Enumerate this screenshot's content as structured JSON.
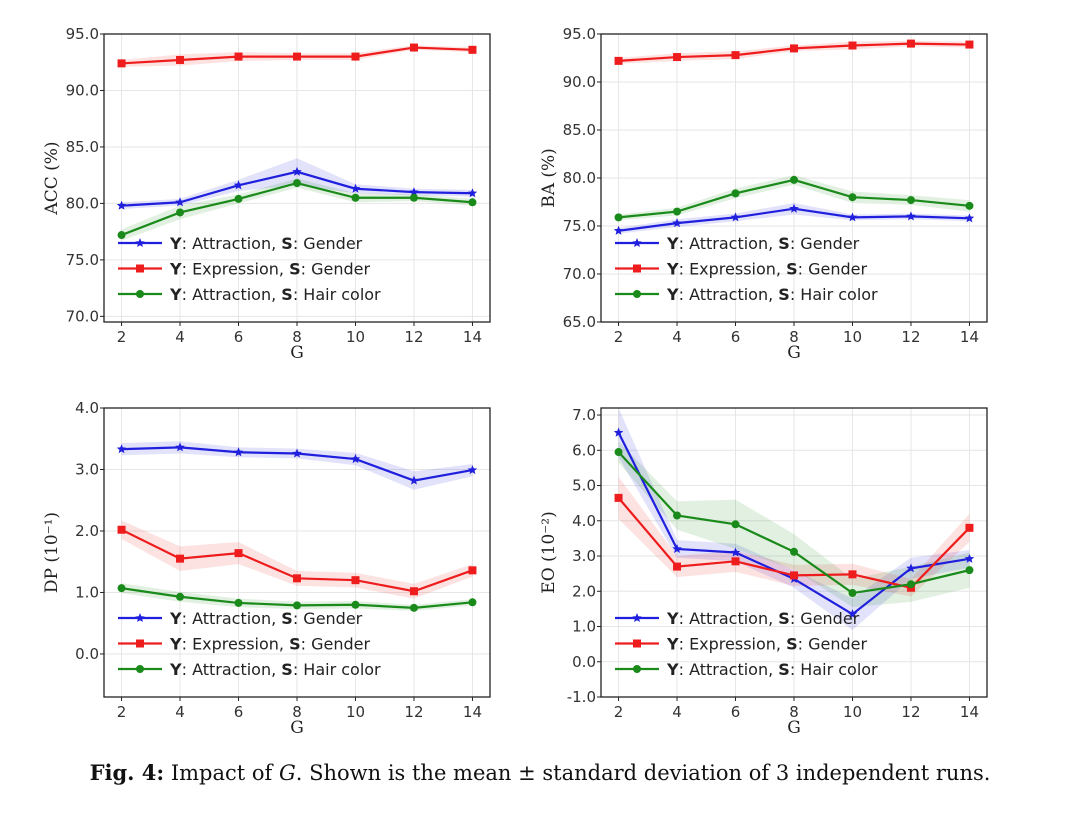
{
  "chart_data": [
    {
      "type": "line",
      "name": "acc",
      "ylabel": "ACC (%)",
      "xlabel": "G",
      "ylim": [
        69.5,
        95.0
      ],
      "yticks": [
        70.0,
        75.0,
        80.0,
        85.0,
        90.0,
        95.0
      ],
      "yticklabels": [
        "70.0",
        "75.0",
        "80.0",
        "85.0",
        "90.0",
        "95.0"
      ],
      "x": [
        2,
        4,
        6,
        8,
        10,
        12,
        14
      ],
      "xlim": [
        1.4,
        14.6
      ],
      "legend_position": "lower-left",
      "series": [
        {
          "name": "Attraction, Gender",
          "y_label": "Attraction",
          "s_label": "Gender",
          "color": "#1f1fdd",
          "marker": "star",
          "values": [
            79.8,
            80.1,
            81.6,
            82.8,
            81.3,
            81.0,
            80.9
          ],
          "std": [
            0.3,
            0.3,
            0.5,
            1.2,
            0.4,
            0.3,
            0.3
          ]
        },
        {
          "name": "Expression, Gender",
          "y_label": "Expression",
          "s_label": "Gender",
          "color": "#ee1c1c",
          "marker": "square",
          "values": [
            92.4,
            92.7,
            93.0,
            93.0,
            93.0,
            93.8,
            93.6
          ],
          "std": [
            0.3,
            0.5,
            0.4,
            0.3,
            0.3,
            0.2,
            0.2
          ]
        },
        {
          "name": "Attraction, Hair color",
          "y_label": "Attraction",
          "s_label": "Hair color",
          "color": "#1a8a1a",
          "marker": "circle",
          "values": [
            77.2,
            79.2,
            80.4,
            81.8,
            80.5,
            80.5,
            80.1
          ],
          "std": [
            0.5,
            0.6,
            0.4,
            0.4,
            0.4,
            0.3,
            0.3
          ]
        }
      ]
    },
    {
      "type": "line",
      "name": "ba",
      "ylabel": "BA (%)",
      "xlabel": "G",
      "ylim": [
        65.0,
        95.0
      ],
      "yticks": [
        65.0,
        70.0,
        75.0,
        80.0,
        85.0,
        90.0,
        95.0
      ],
      "yticklabels": [
        "65.0",
        "70.0",
        "75.0",
        "80.0",
        "85.0",
        "90.0",
        "95.0"
      ],
      "x": [
        2,
        4,
        6,
        8,
        10,
        12,
        14
      ],
      "xlim": [
        1.4,
        14.6
      ],
      "legend_position": "lower-left",
      "series": [
        {
          "name": "Attraction, Gender",
          "y_label": "Attraction",
          "s_label": "Gender",
          "color": "#1f1fdd",
          "marker": "star",
          "values": [
            74.5,
            75.3,
            75.9,
            76.8,
            75.9,
            76.0,
            75.8
          ],
          "std": [
            0.3,
            0.4,
            0.4,
            0.6,
            0.3,
            0.3,
            0.3
          ]
        },
        {
          "name": "Expression, Gender",
          "y_label": "Expression",
          "s_label": "Gender",
          "color": "#ee1c1c",
          "marker": "square",
          "values": [
            92.2,
            92.6,
            92.8,
            93.5,
            93.8,
            94.0,
            93.9
          ],
          "std": [
            0.3,
            0.4,
            0.4,
            0.3,
            0.4,
            0.3,
            0.3
          ]
        },
        {
          "name": "Attraction, Hair color",
          "y_label": "Attraction",
          "s_label": "Hair color",
          "color": "#1a8a1a",
          "marker": "circle",
          "values": [
            75.9,
            76.5,
            78.4,
            79.8,
            78.0,
            77.7,
            77.1
          ],
          "std": [
            0.3,
            0.4,
            0.5,
            0.5,
            0.6,
            0.5,
            0.6
          ]
        }
      ]
    },
    {
      "type": "line",
      "name": "dp",
      "ylabel": "DP (10⁻¹)",
      "xlabel": "G",
      "ylim": [
        -0.7,
        4.0
      ],
      "yticks": [
        0.0,
        1.0,
        2.0,
        3.0,
        4.0
      ],
      "yticklabels": [
        "0.0",
        "1.0",
        "2.0",
        "3.0",
        "4.0"
      ],
      "x": [
        2,
        4,
        6,
        8,
        10,
        12,
        14
      ],
      "xlim": [
        1.4,
        14.6
      ],
      "legend_position": "lower-left",
      "series": [
        {
          "name": "Attraction, Gender",
          "y_label": "Attraction",
          "s_label": "Gender",
          "color": "#1f1fdd",
          "marker": "star",
          "values": [
            3.33,
            3.36,
            3.28,
            3.26,
            3.17,
            2.82,
            2.99
          ],
          "std": [
            0.1,
            0.1,
            0.08,
            0.08,
            0.1,
            0.15,
            0.1
          ]
        },
        {
          "name": "Expression, Gender",
          "y_label": "Expression",
          "s_label": "Gender",
          "color": "#ee1c1c",
          "marker": "square",
          "values": [
            2.02,
            1.55,
            1.64,
            1.23,
            1.2,
            1.02,
            1.36
          ],
          "std": [
            0.15,
            0.2,
            0.18,
            0.12,
            0.12,
            0.12,
            0.1
          ]
        },
        {
          "name": "Attraction, Hair color",
          "y_label": "Attraction",
          "s_label": "Hair color",
          "color": "#1a8a1a",
          "marker": "circle",
          "values": [
            1.07,
            0.93,
            0.83,
            0.79,
            0.8,
            0.75,
            0.84
          ],
          "std": [
            0.08,
            0.08,
            0.07,
            0.06,
            0.06,
            0.05,
            0.05
          ]
        }
      ]
    },
    {
      "type": "line",
      "name": "eo",
      "ylabel": "EO (10⁻²)",
      "xlabel": "G",
      "ylim": [
        -1.0,
        7.2
      ],
      "yticks": [
        -1.0,
        0.0,
        1.0,
        2.0,
        3.0,
        4.0,
        5.0,
        6.0,
        7.0
      ],
      "yticklabels": [
        "-1.0",
        "0.0",
        "1.0",
        "2.0",
        "3.0",
        "4.0",
        "5.0",
        "6.0",
        "7.0"
      ],
      "x": [
        2,
        4,
        6,
        8,
        10,
        12,
        14
      ],
      "xlim": [
        1.4,
        14.6
      ],
      "legend_position": "lower-left",
      "series": [
        {
          "name": "Attraction, Gender",
          "y_label": "Attraction",
          "s_label": "Gender",
          "color": "#1f1fdd",
          "marker": "star",
          "values": [
            6.5,
            3.2,
            3.1,
            2.35,
            1.35,
            2.65,
            2.92
          ],
          "std": [
            0.7,
            0.25,
            0.25,
            0.25,
            0.45,
            0.3,
            0.25
          ]
        },
        {
          "name": "Expression, Gender",
          "y_label": "Expression",
          "s_label": "Gender",
          "color": "#ee1c1c",
          "marker": "square",
          "values": [
            4.65,
            2.7,
            2.85,
            2.45,
            2.48,
            2.1,
            3.8
          ],
          "std": [
            0.6,
            0.3,
            0.3,
            0.3,
            0.3,
            0.25,
            0.4
          ]
        },
        {
          "name": "Attraction, Hair color",
          "y_label": "Attraction",
          "s_label": "Hair color",
          "color": "#1a8a1a",
          "marker": "circle",
          "values": [
            5.95,
            4.15,
            3.9,
            3.12,
            1.95,
            2.2,
            2.6
          ],
          "std": [
            0.3,
            0.4,
            0.7,
            0.5,
            0.4,
            0.5,
            0.5
          ]
        }
      ]
    }
  ],
  "caption": {
    "label": "Fig. 4:",
    "text_before": "Impact of ",
    "variable": "G",
    "text_after": ". Shown is the mean ± standard deviation of 3 independent runs."
  }
}
